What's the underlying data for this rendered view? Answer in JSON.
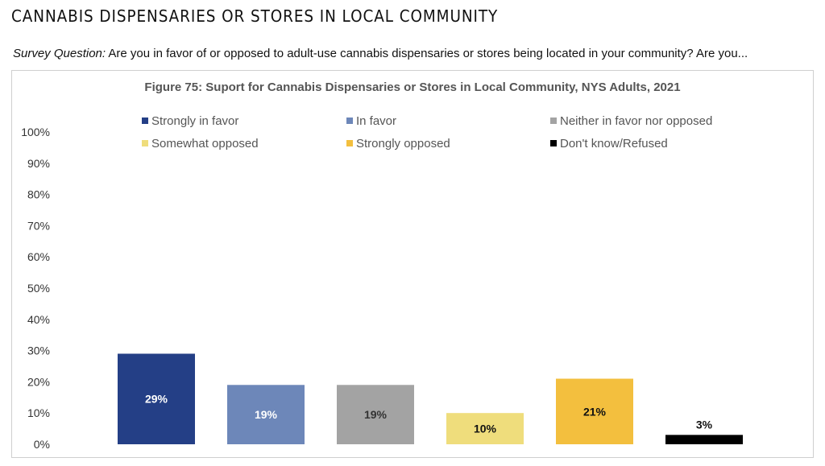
{
  "page": {
    "heading": "CANNABIS DISPENSARIES OR STORES IN LOCAL COMMUNITY",
    "question_label": "Survey Question:",
    "question_text": "Are you in favor of or opposed to adult-use cannabis dispensaries or stores being located in your community? Are you..."
  },
  "chart_data": {
    "type": "bar",
    "title": "Figure 75: Suport for Cannabis Dispensaries or Stores in Local Community, NYS Adults, 2021",
    "xlabel": "",
    "ylabel": "",
    "ylim": [
      0,
      100
    ],
    "yticks": [
      "0%",
      "10%",
      "20%",
      "30%",
      "40%",
      "50%",
      "60%",
      "70%",
      "80%",
      "90%",
      "100%"
    ],
    "grid": false,
    "legend_position": "top",
    "categories": [
      "Strongly in favor",
      "In favor",
      "Neither in favor nor opposed",
      "Somewhat opposed",
      "Strongly opposed",
      "Don't know/Refused"
    ],
    "values": [
      29,
      19,
      19,
      10,
      21,
      3
    ],
    "data_labels": [
      "29%",
      "19%",
      "19%",
      "10%",
      "21%",
      "3%"
    ],
    "colors": [
      "#243f86",
      "#6d87b9",
      "#a3a3a3",
      "#efdd7c",
      "#f3bf3e",
      "#000000"
    ],
    "label_colors": [
      "#ffffff",
      "#ffffff",
      "#333333",
      "#111111",
      "#111111",
      "#111111"
    ]
  }
}
